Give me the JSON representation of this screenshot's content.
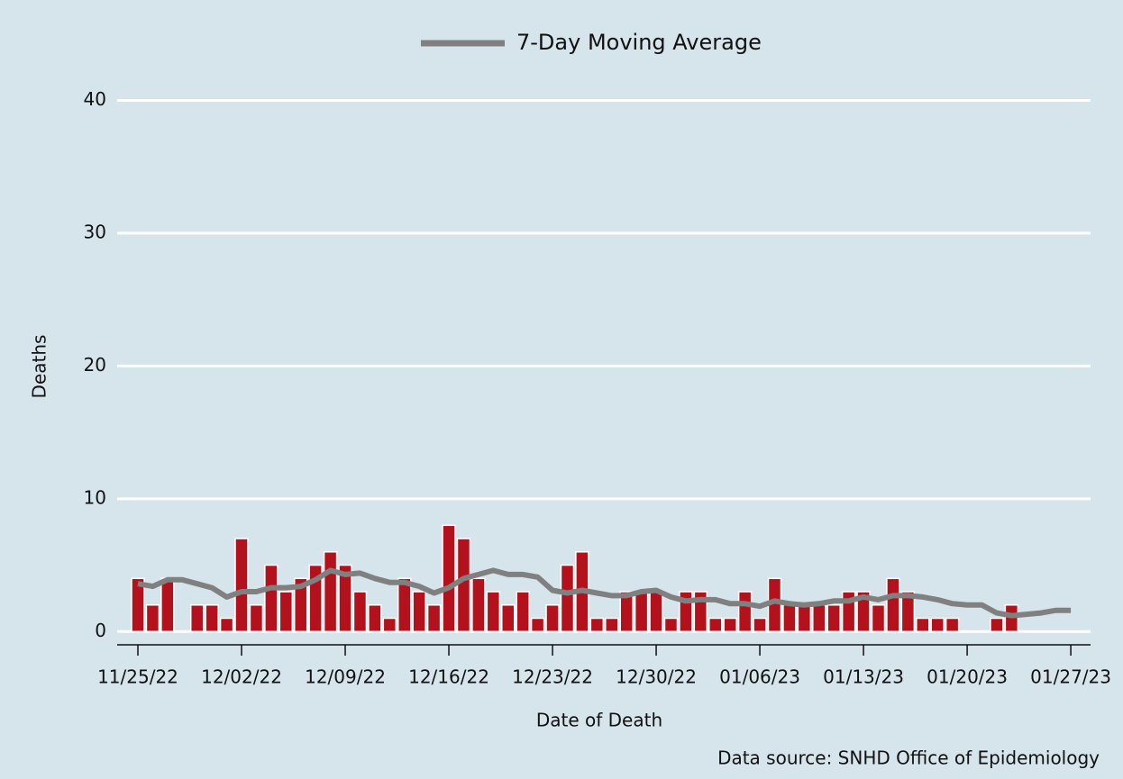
{
  "chart_data": {
    "type": "bar",
    "legend_series": "7-Day Moving Average",
    "x_label": "Date of Death",
    "y_label": "Deaths",
    "source": "Data source: SNHD Office of Epidemiology",
    "categories": [
      "11/25/22",
      null,
      null,
      null,
      null,
      null,
      null,
      "12/02/22",
      null,
      null,
      null,
      null,
      null,
      null,
      "12/09/22",
      null,
      null,
      null,
      null,
      null,
      null,
      "12/16/22",
      null,
      null,
      null,
      null,
      null,
      null,
      "12/23/22",
      null,
      null,
      null,
      null,
      null,
      null,
      "12/30/22",
      null,
      null,
      null,
      null,
      null,
      null,
      "01/06/23",
      null,
      null,
      null,
      null,
      null,
      null,
      "01/13/23",
      null,
      null,
      null,
      null,
      null,
      null,
      "01/20/23",
      null,
      null,
      null,
      null,
      null,
      null,
      "01/27/23"
    ],
    "values": [
      4,
      2,
      4,
      0,
      2,
      2,
      1,
      7,
      2,
      5,
      3,
      4,
      5,
      6,
      5,
      3,
      2,
      1,
      4,
      3,
      2,
      8,
      7,
      4,
      3,
      2,
      3,
      1,
      2,
      5,
      6,
      1,
      1,
      3,
      3,
      3,
      1,
      3,
      3,
      1,
      1,
      3,
      1,
      4,
      2,
      2,
      2,
      2,
      3,
      3,
      2,
      4,
      3,
      1,
      1,
      1,
      0,
      0,
      1,
      2,
      0,
      0,
      0,
      0
    ],
    "color": "#b3121c",
    "moving_average": {
      "color": "#808080",
      "values": [
        3.6,
        3.4,
        3.9,
        3.9,
        3.6,
        3.3,
        2.6,
        3.0,
        3.0,
        3.3,
        3.3,
        3.4,
        3.9,
        4.6,
        4.3,
        4.4,
        4.0,
        3.7,
        3.7,
        3.4,
        2.9,
        3.3,
        4.0,
        4.3,
        4.6,
        4.3,
        4.3,
        4.1,
        3.1,
        2.9,
        3.1,
        2.9,
        2.7,
        2.7,
        3.0,
        3.1,
        2.6,
        2.3,
        2.4,
        2.4,
        2.1,
        2.1,
        1.9,
        2.3,
        2.1,
        2.0,
        2.1,
        2.3,
        2.3,
        2.6,
        2.4,
        2.7,
        2.7,
        2.6,
        2.4,
        2.1,
        2.0,
        2.0,
        1.4,
        1.2,
        1.3,
        1.4,
        1.6,
        1.6
      ]
    },
    "ylim": [
      -1,
      42
    ],
    "yticks": [
      0,
      10,
      20,
      30,
      40
    ],
    "grid": true
  }
}
